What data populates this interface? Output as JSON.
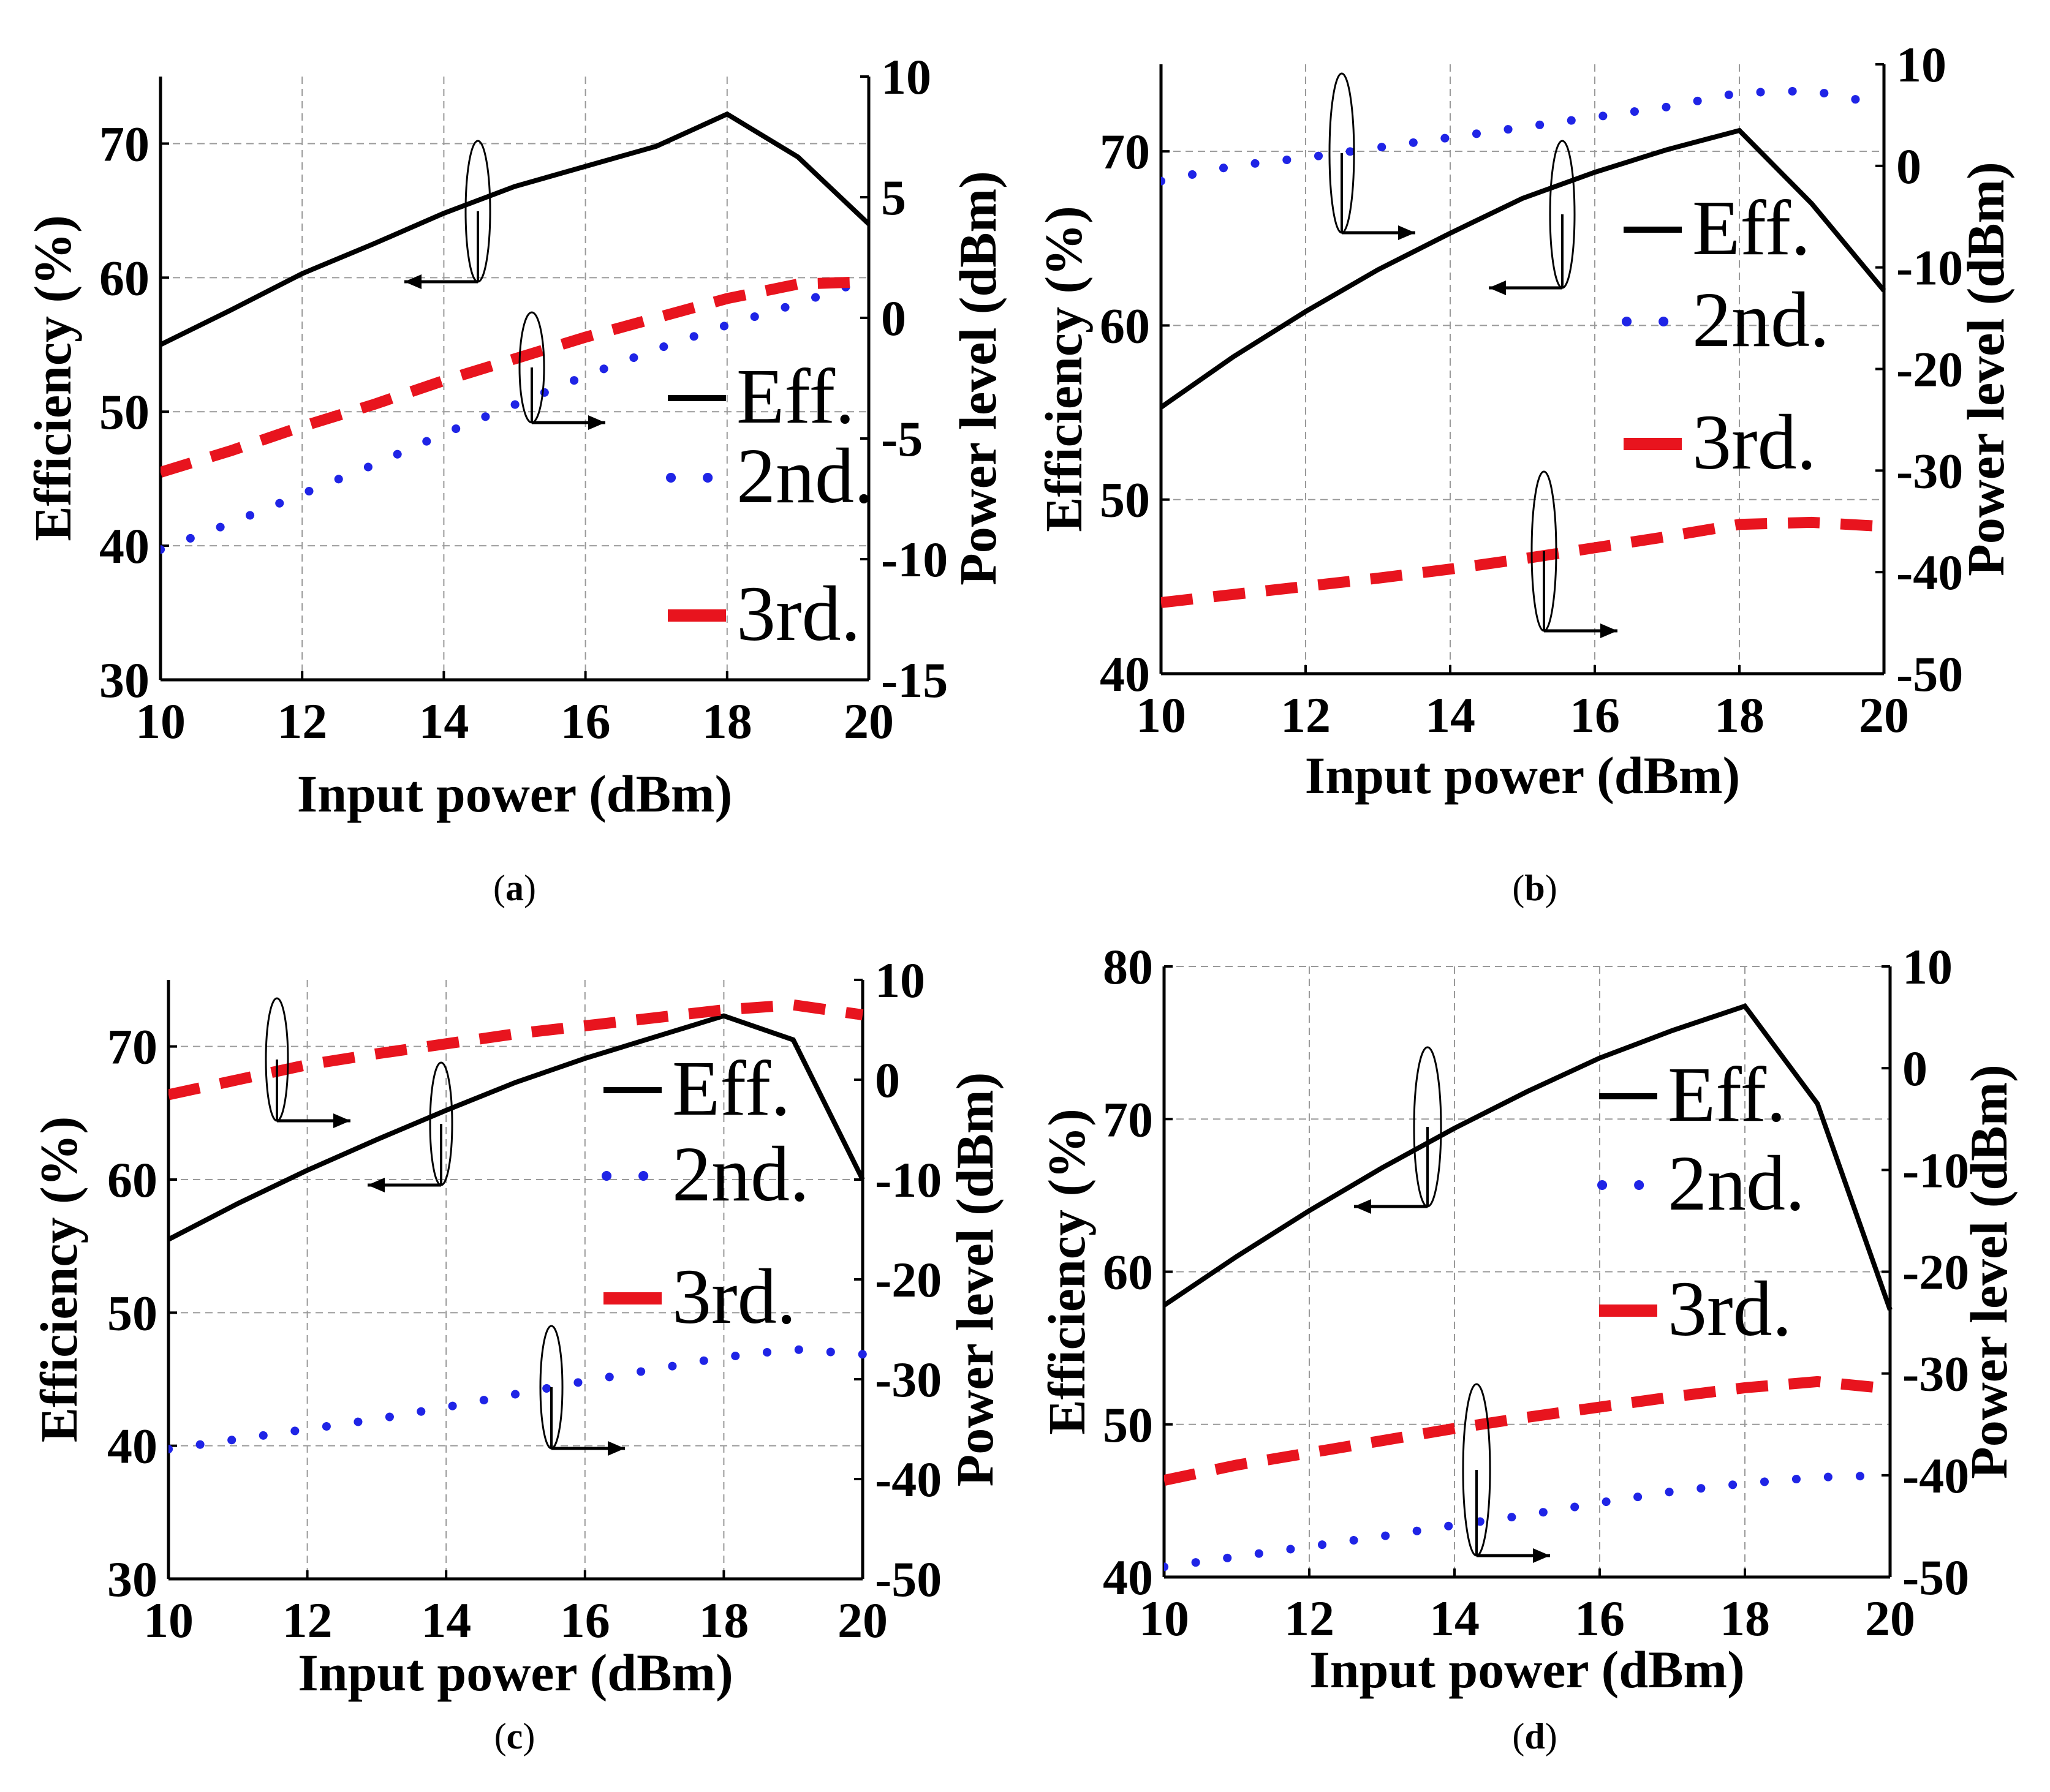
{
  "chart_data": [
    {
      "type": "line",
      "panel": "a",
      "caption_label": "a",
      "xlabel": "Input power (dBm)",
      "ylabel": "Efficiency (%)",
      "y2label": "Power level (dBm)",
      "xlim": [
        10,
        20
      ],
      "ylim": [
        30,
        75
      ],
      "y2lim": [
        -15,
        10
      ],
      "xticks": [
        10,
        12,
        14,
        16,
        18,
        20
      ],
      "yticks": [
        30,
        40,
        50,
        60,
        70
      ],
      "y2ticks": [
        -15,
        -10,
        -5,
        0,
        5,
        10
      ],
      "legend": [
        "Eff.",
        "2nd.",
        "3rd."
      ],
      "series": [
        {
          "name": "Eff.",
          "axis": "left",
          "color": "#000000",
          "x": [
            10,
            11,
            12,
            13,
            14,
            15,
            16,
            17,
            18,
            19,
            20
          ],
          "values": [
            55,
            57.6,
            60.3,
            62.5,
            64.8,
            66.8,
            68.3,
            69.8,
            72.2,
            69,
            64
          ]
        },
        {
          "name": "2nd.",
          "axis": "right",
          "color": "#1f24e6",
          "x": [
            10,
            11,
            12,
            13,
            14,
            15,
            16,
            17,
            18,
            19,
            20
          ],
          "values": [
            -9.6,
            -8.5,
            -7.3,
            -6.1,
            -4.8,
            -3.6,
            -2.4,
            -1.3,
            -0.3,
            0.6,
            1.6
          ]
        },
        {
          "name": "3rd.",
          "axis": "right",
          "color": "#e8141e",
          "x": [
            10,
            11,
            12,
            13,
            14,
            15,
            16,
            17,
            18,
            19,
            20
          ],
          "values": [
            -6.4,
            -5.5,
            -4.5,
            -3.6,
            -2.6,
            -1.7,
            -0.8,
            0,
            0.8,
            1.4,
            1.5
          ]
        }
      ]
    },
    {
      "type": "line",
      "panel": "b",
      "caption_label": "b",
      "xlabel": "Input  power (dBm)",
      "ylabel": "Efficiency (%)",
      "y2label": "Power level (dBm)",
      "xlim": [
        10,
        20
      ],
      "ylim": [
        40,
        75
      ],
      "y2lim": [
        -50,
        10
      ],
      "xticks": [
        10,
        12,
        14,
        16,
        18,
        20
      ],
      "yticks": [
        40,
        50,
        60,
        70
      ],
      "y2ticks": [
        -50,
        -40,
        -30,
        -20,
        -10,
        0,
        10
      ],
      "legend": [
        "Eff.",
        "2nd.",
        "3rd."
      ],
      "series": [
        {
          "name": "Eff.",
          "axis": "left",
          "color": "#000000",
          "x": [
            10,
            11,
            12,
            13,
            14,
            15,
            16,
            17,
            18,
            19,
            20
          ],
          "values": [
            55.3,
            58.2,
            60.8,
            63.2,
            65.3,
            67.3,
            68.8,
            70.1,
            71.2,
            67,
            62
          ]
        },
        {
          "name": "2nd.",
          "axis": "right",
          "color": "#1f24e6",
          "x": [
            10,
            11,
            12,
            13,
            14,
            15,
            16,
            17,
            18,
            19,
            20
          ],
          "values": [
            -1.5,
            0,
            0.8,
            1.8,
            2.8,
            3.8,
            4.8,
            5.8,
            7.2,
            7.4,
            6
          ]
        },
        {
          "name": "3rd.",
          "axis": "right",
          "color": "#e8141e",
          "x": [
            10,
            11,
            12,
            13,
            14,
            15,
            16,
            17,
            18,
            19,
            20
          ],
          "values": [
            -43,
            -42.2,
            -41.4,
            -40.6,
            -39.7,
            -38.7,
            -37.6,
            -36.5,
            -35.3,
            -35.1,
            -35.5
          ]
        }
      ]
    },
    {
      "type": "line",
      "panel": "c",
      "caption_label": "c",
      "xlabel": "Input power (dBm)",
      "ylabel": "Efficiency (%)",
      "y2label": "Power level (dBm)",
      "xlim": [
        10,
        20
      ],
      "ylim": [
        30,
        75
      ],
      "y2lim": [
        -50,
        10
      ],
      "xticks": [
        10,
        12,
        14,
        16,
        18,
        20
      ],
      "yticks": [
        30,
        40,
        50,
        60,
        70
      ],
      "y2ticks": [
        -50,
        -40,
        -30,
        -20,
        -10,
        0,
        10
      ],
      "legend": [
        "Eff.",
        "2nd.",
        "3rd."
      ],
      "series": [
        {
          "name": "Eff.",
          "axis": "left",
          "color": "#000000",
          "x": [
            10,
            11,
            12,
            13,
            14,
            15,
            16,
            17,
            18,
            19,
            20
          ],
          "values": [
            55.5,
            58.2,
            60.7,
            63,
            65.2,
            67.3,
            69.1,
            70.7,
            72.3,
            70.5,
            60
          ]
        },
        {
          "name": "2nd.",
          "axis": "right",
          "color": "#1f24e6",
          "x": [
            10,
            11,
            12,
            13,
            14,
            15,
            16,
            17,
            18,
            19,
            20
          ],
          "values": [
            -37,
            -36,
            -35,
            -34,
            -32.8,
            -31.5,
            -30.2,
            -29,
            -27.8,
            -27,
            -27.5
          ]
        },
        {
          "name": "3rd.",
          "axis": "right",
          "color": "#e8141e",
          "x": [
            10,
            11,
            12,
            13,
            14,
            15,
            16,
            17,
            18,
            19,
            20
          ],
          "values": [
            -1.5,
            0,
            1.5,
            2.6,
            3.6,
            4.6,
            5.4,
            6.2,
            7,
            7.5,
            6.5
          ]
        }
      ]
    },
    {
      "type": "line",
      "panel": "d",
      "caption_label": "d",
      "xlabel": "Input power (dBm)",
      "ylabel": "Efficiency (%)",
      "y2label": "Power level (dBm)",
      "xlim": [
        10,
        20
      ],
      "ylim": [
        40,
        80
      ],
      "y2lim": [
        -50,
        10
      ],
      "xticks": [
        10,
        12,
        14,
        16,
        18,
        20
      ],
      "yticks": [
        40,
        50,
        60,
        70,
        80
      ],
      "y2ticks": [
        -50,
        -40,
        -30,
        -20,
        -10,
        0,
        10
      ],
      "legend": [
        "Eff.",
        "2nd.",
        "3rd."
      ],
      "series": [
        {
          "name": "Eff.",
          "axis": "left",
          "color": "#000000",
          "x": [
            10,
            11,
            12,
            13,
            14,
            15,
            16,
            17,
            18,
            19,
            20
          ],
          "values": [
            57.8,
            61,
            64,
            66.8,
            69.4,
            71.8,
            74,
            75.8,
            77.4,
            71,
            57.5
          ]
        },
        {
          "name": "2nd.",
          "axis": "right",
          "color": "#1f24e6",
          "x": [
            10,
            11,
            12,
            13,
            14,
            15,
            16,
            17,
            18,
            19,
            20
          ],
          "values": [
            -49,
            -48,
            -47,
            -46,
            -44.9,
            -43.9,
            -42.7,
            -41.6,
            -40.8,
            -40.2,
            -40
          ]
        },
        {
          "name": "3rd.",
          "axis": "right",
          "color": "#e8141e",
          "x": [
            10,
            11,
            12,
            13,
            14,
            15,
            16,
            17,
            18,
            19,
            20
          ],
          "values": [
            -40.5,
            -39,
            -37.8,
            -36.6,
            -35.4,
            -34.3,
            -33.3,
            -32.3,
            -31.4,
            -30.8,
            -31.5
          ]
        }
      ]
    }
  ]
}
